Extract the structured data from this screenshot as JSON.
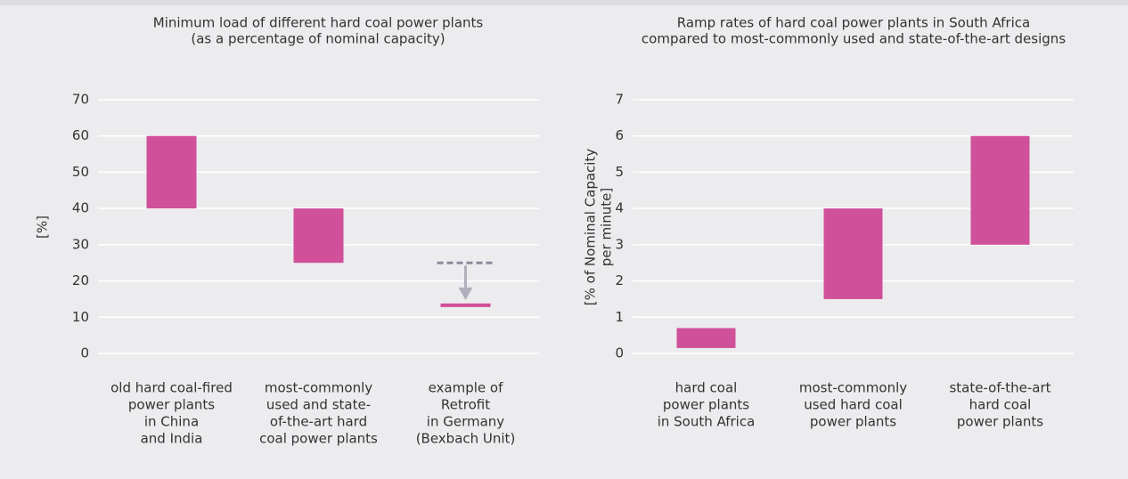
{
  "chart_data": [
    {
      "type": "floating_bar",
      "title": [
        "Minimum load of different hard coal power plants",
        "(as a percentage of nominal capacity)"
      ],
      "y_label": [
        "[%]"
      ],
      "categories": [
        [
          "old hard coal-fired",
          "power plants",
          "in China",
          "and India"
        ],
        [
          "most-commonly",
          "used and state-",
          "of-the-art hard",
          "coal power plants"
        ],
        [
          "example of",
          "Retrofit",
          "in Germany",
          "(Bexbach Unit)"
        ]
      ],
      "low": [
        40,
        25,
        12.8
      ],
      "high": [
        60,
        40,
        13.8
      ],
      "previous": [
        null,
        null,
        25
      ],
      "color": "#d0509a",
      "ylim": [
        0,
        70
      ],
      "yticks": [
        0,
        10,
        20,
        30,
        40,
        50,
        60,
        70
      ],
      "grid": true
    },
    {
      "type": "floating_bar",
      "title": [
        "Ramp rates of hard coal power plants in South Africa",
        "compared to most-commonly used and state-of-the-art designs"
      ],
      "y_label": [
        "[% of Nominal Capacity",
        "per minute]"
      ],
      "categories": [
        [
          "hard coal",
          "power plants",
          "in South Africa"
        ],
        [
          "most-commonly",
          "used hard coal",
          "power plants"
        ],
        [
          "state-of-the-art",
          "hard coal",
          "power plants"
        ]
      ],
      "low": [
        0.15,
        1.5,
        3
      ],
      "high": [
        0.7,
        4,
        6
      ],
      "color": "#d0509a",
      "ylim": [
        0,
        7
      ],
      "yticks": [
        0,
        1,
        2,
        3,
        4,
        5,
        6,
        7
      ],
      "grid": true
    }
  ]
}
